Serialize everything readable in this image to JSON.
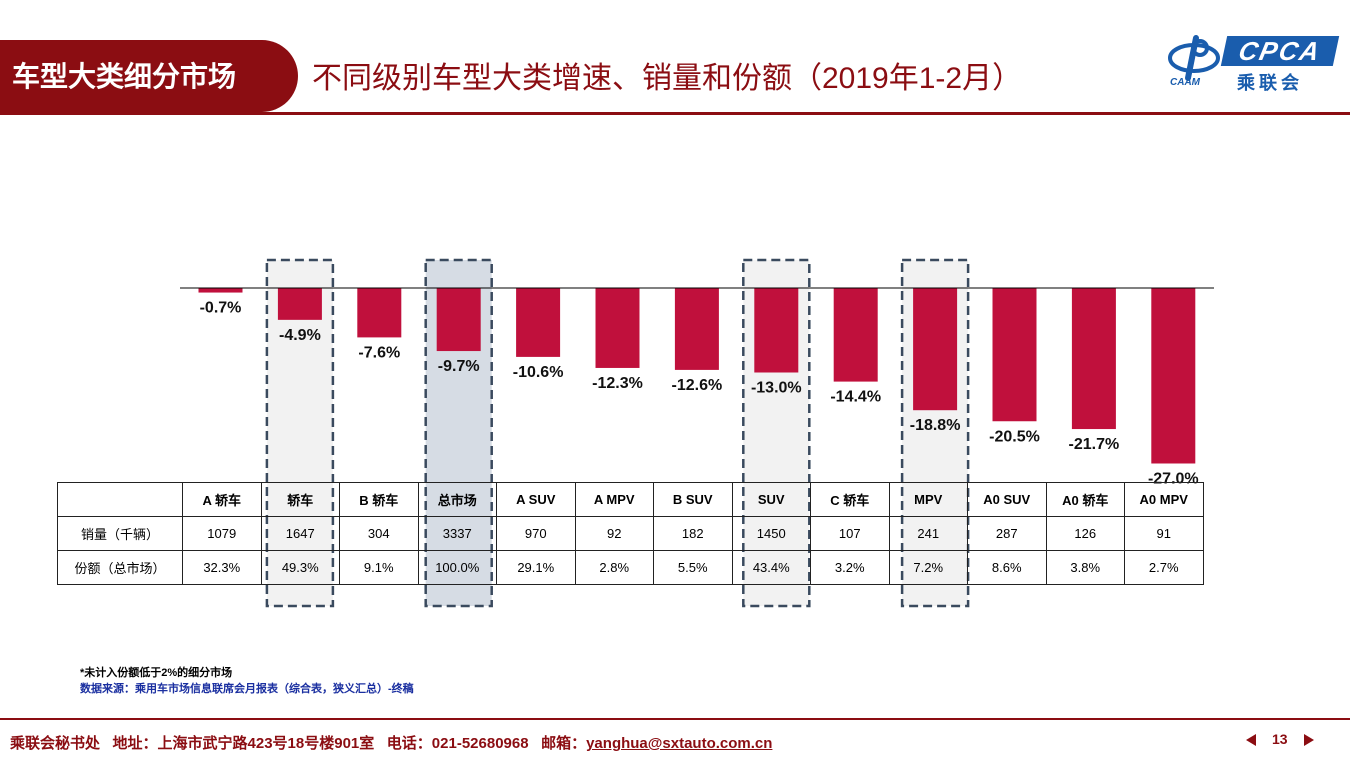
{
  "header": {
    "section_title": "车型大类细分市场",
    "slide_title": "不同级别车型大类增速、销量和份额（2019年1-2月）",
    "logo_text": "CPCA",
    "logo_cn": "乘联会",
    "logo_small": "CAAM"
  },
  "colors": {
    "bar": "#c0103c",
    "brand_dark_red": "#8b0d12",
    "highlight_light": "#f2f2f2",
    "highlight_total": "#d6dce4",
    "logo_blue": "#1a5dad"
  },
  "chart_data": {
    "type": "bar",
    "categories": [
      "A 轿车",
      "轿车",
      "B 轿车",
      "总市场",
      "A SUV",
      "A MPV",
      "B SUV",
      "SUV",
      "C 轿车",
      "MPV",
      "A0 SUV",
      "A0 轿车",
      "A0 MPV"
    ],
    "values": [
      -0.7,
      -4.9,
      -7.6,
      -9.7,
      -10.6,
      -12.3,
      -12.6,
      -13.0,
      -14.4,
      -18.8,
      -20.5,
      -21.7,
      -27.0
    ],
    "value_labels": [
      "-0.7%",
      "-4.9%",
      "-7.6%",
      "-9.7%",
      "-10.6%",
      "-12.3%",
      "-12.6%",
      "-13.0%",
      "-14.4%",
      "-18.8%",
      "-20.5%",
      "-21.7%",
      "-27.0%"
    ],
    "highlighted": [
      "轿车",
      "总市场",
      "SUV",
      "MPV"
    ],
    "ylim": [
      -28,
      0
    ],
    "grid": false,
    "legend": "none"
  },
  "table": {
    "row_headers": [
      "",
      "销量（千辆）",
      "份额（总市场）"
    ],
    "sales": [
      "1079",
      "1647",
      "304",
      "3337",
      "970",
      "92",
      "182",
      "1450",
      "107",
      "241",
      "287",
      "126",
      "91"
    ],
    "shares": [
      "32.3%",
      "49.3%",
      "9.1%",
      "100.0%",
      "29.1%",
      "2.8%",
      "5.5%",
      "43.4%",
      "3.2%",
      "7.2%",
      "8.6%",
      "3.8%",
      "2.7%"
    ]
  },
  "notes": {
    "note1": "*未计入份额低于2%的细分市场",
    "note2": "数据来源：乘用车市场信息联席会月报表（综合表，狭义汇总）-终稿"
  },
  "footer": {
    "org": "乘联会秘书处",
    "address": "地址：上海市武宁路423号18号楼901室",
    "phone": "电话：021-52680968",
    "email_label": "邮箱：",
    "email": "yanghua@sxtauto.com.cn",
    "page": "13"
  }
}
